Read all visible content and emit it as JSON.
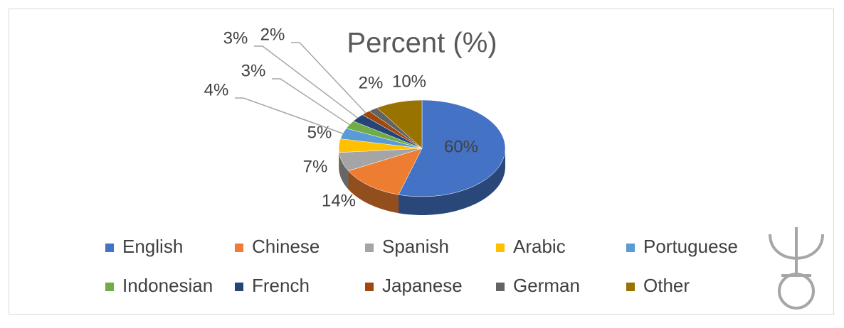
{
  "chart_data": {
    "type": "pie",
    "title": "Percent (%)",
    "categories": [
      "English",
      "Chinese",
      "Spanish",
      "Arabic",
      "Portuguese",
      "Indonesian",
      "French",
      "Japanese",
      "German",
      "Other"
    ],
    "values": [
      60,
      14,
      7,
      5,
      4,
      3,
      3,
      2,
      2,
      10
    ],
    "value_labels": [
      "60%",
      "14%",
      "7%",
      "5%",
      "4%",
      "3%",
      "3%",
      "2%",
      "2%",
      "10%"
    ],
    "colors": [
      "#4472c4",
      "#ed7d31",
      "#a5a5a5",
      "#ffc000",
      "#5b9bd5",
      "#70ad47",
      "#264478",
      "#9e480e",
      "#636363",
      "#997300"
    ],
    "legend": "bottom"
  }
}
